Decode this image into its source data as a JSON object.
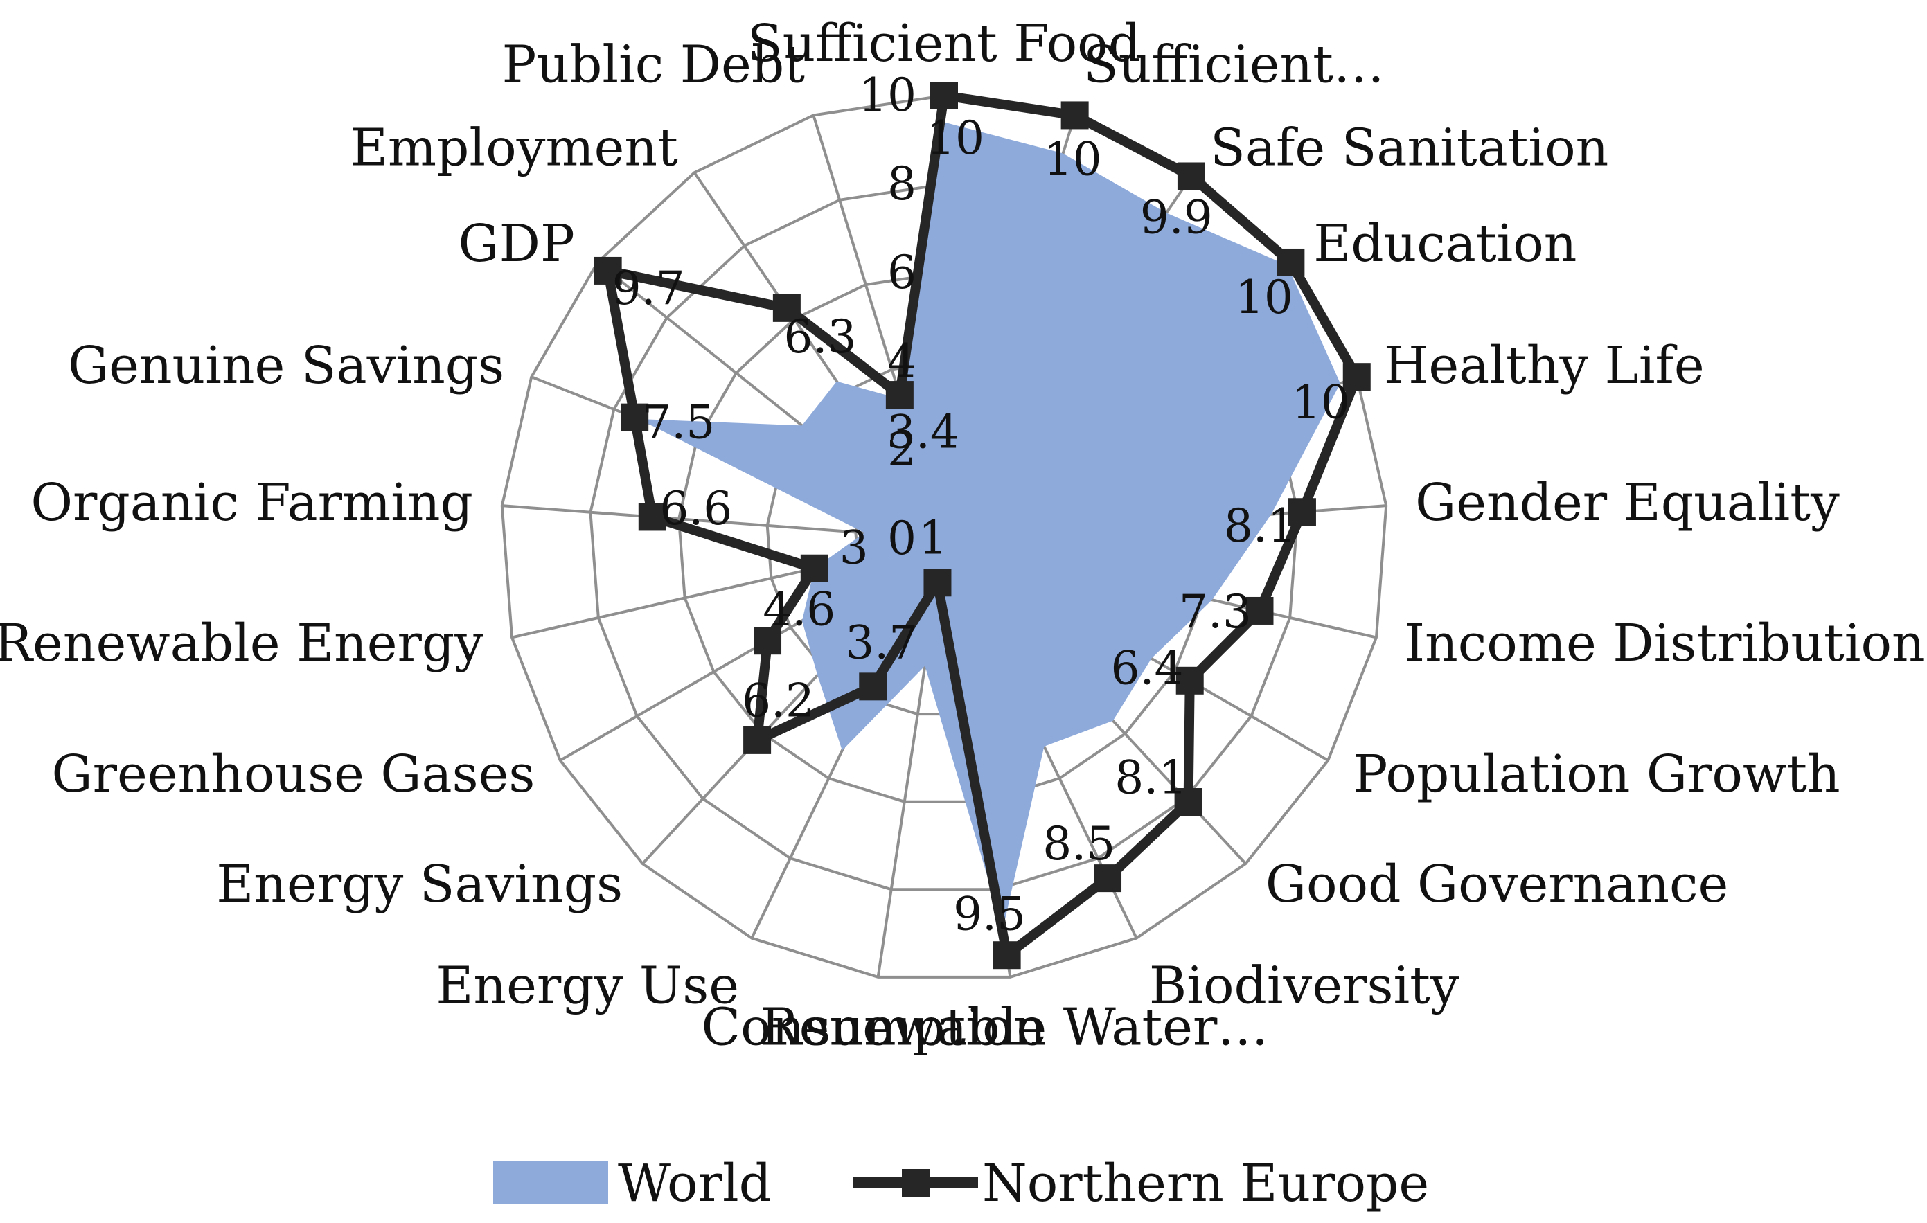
{
  "chart_data": {
    "type": "radar",
    "title": "",
    "categories": [
      "Sufficient Food",
      "Sufficient…",
      "Safe Sanitation",
      "Education",
      "Healthy Life",
      "Gender Equality",
      "Income Distribution",
      "Population Growth",
      "Good Governance",
      "Biodiversity",
      "Renewable Water…",
      "Consumption",
      "Energy Use",
      "Energy Savings",
      "Greenhouse Gases",
      "Renewable Energy",
      "Organic Farming",
      "Genuine Savings",
      "GDP",
      "Employment",
      "Public Debt"
    ],
    "rlim": [
      0,
      10
    ],
    "rticks": [
      0,
      2,
      4,
      6,
      8,
      10
    ],
    "grid": true,
    "series": [
      {
        "name": "World",
        "style": "filled-area",
        "color": "#8eaadb",
        "values": [
          9.4,
          9.1,
          8.9,
          9.9,
          9.6,
          7.4,
          6.2,
          5.4,
          5.6,
          5.2,
          8.9,
          2.9,
          5.3,
          4.2,
          3.7,
          3.0,
          1.8,
          7.4,
          4.1,
          4.3,
          3.3
        ]
      },
      {
        "name": "Northern Europe",
        "style": "line-with-square-markers",
        "color": "#262626",
        "values": [
          10,
          10,
          9.9,
          10,
          10,
          8.1,
          7.3,
          6.4,
          8.1,
          8.5,
          9.5,
          1.0,
          3.7,
          6.2,
          4.6,
          3.0,
          6.6,
          7.5,
          9.7,
          6.3,
          3.4
        ]
      }
    ],
    "data_labels": [
      "10",
      "10",
      "9.9",
      "10",
      "10",
      "8.1",
      "7.3",
      "6.4",
      "8.1",
      "8.5",
      "9.5",
      "1",
      "3.7",
      "6.2",
      "4.6",
      "3",
      "6.6",
      "7.5",
      "9.7",
      "6.3",
      "3.4"
    ],
    "legend": {
      "placement": "bottom",
      "items": [
        "World",
        "Northern Europe"
      ]
    }
  }
}
